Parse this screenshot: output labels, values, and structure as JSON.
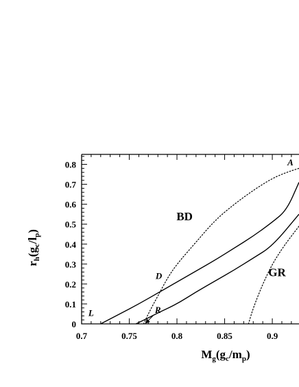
{
  "chart_data": {
    "type": "line",
    "title": "",
    "xlabel": {
      "main": "M",
      "sub1": "g",
      "open": "(g",
      "sub2": "c",
      "mid": "/m",
      "sub3": "p",
      "close": ")"
    },
    "ylabel": {
      "main": "r",
      "sub1": "h",
      "open": "(g",
      "sub2": "c",
      "mid": "/l",
      "sub3": "p",
      "close": ")"
    },
    "xlim": [
      0.7,
      0.928
    ],
    "ylim": [
      0,
      0.85
    ],
    "xticks": [
      "0.7",
      "0.75",
      "0.8",
      "0.85",
      "0.9"
    ],
    "yticks": [
      "0",
      "0.1",
      "0.2",
      "0.3",
      "0.4",
      "0.5",
      "0.6",
      "0.7",
      "0.8"
    ],
    "grid": false,
    "series": [
      {
        "style": "solid",
        "points": [
          [
            0.72,
            0.0
          ],
          [
            0.74,
            0.05
          ],
          [
            0.76,
            0.1
          ],
          [
            0.78,
            0.155
          ],
          [
            0.8,
            0.21
          ],
          [
            0.82,
            0.265
          ],
          [
            0.84,
            0.32
          ],
          [
            0.86,
            0.38
          ],
          [
            0.88,
            0.44
          ],
          [
            0.9,
            0.51
          ],
          [
            0.915,
            0.57
          ],
          [
            0.928,
            0.71
          ]
        ]
      },
      {
        "style": "solid",
        "points": [
          [
            0.757,
            0.0
          ],
          [
            0.77,
            0.03
          ],
          [
            0.78,
            0.055
          ],
          [
            0.8,
            0.1
          ],
          [
            0.82,
            0.16
          ],
          [
            0.84,
            0.215
          ],
          [
            0.86,
            0.27
          ],
          [
            0.88,
            0.33
          ],
          [
            0.9,
            0.39
          ],
          [
            0.928,
            0.55
          ]
        ]
      },
      {
        "style": "dotted",
        "points": [
          [
            0.765,
            0.0
          ],
          [
            0.772,
            0.07
          ],
          [
            0.78,
            0.14
          ],
          [
            0.79,
            0.23
          ],
          [
            0.8,
            0.3
          ],
          [
            0.82,
            0.41
          ],
          [
            0.84,
            0.52
          ],
          [
            0.86,
            0.6
          ],
          [
            0.88,
            0.67
          ],
          [
            0.9,
            0.73
          ],
          [
            0.915,
            0.76
          ],
          [
            0.928,
            0.78
          ]
        ]
      },
      {
        "style": "dotted",
        "points": [
          [
            0.875,
            0.0
          ],
          [
            0.88,
            0.08
          ],
          [
            0.89,
            0.2
          ],
          [
            0.9,
            0.3
          ],
          [
            0.912,
            0.39
          ],
          [
            0.928,
            0.49
          ]
        ]
      }
    ],
    "annotations": [
      {
        "text": "L",
        "x": 0.71,
        "y": 0.04,
        "kind": "point"
      },
      {
        "text": "R",
        "x": 0.78,
        "y": 0.055,
        "kind": "point",
        "arrow_to": [
          0.767,
          0.003
        ]
      },
      {
        "text": "D",
        "x": 0.781,
        "y": 0.225,
        "kind": "point"
      },
      {
        "text": "A",
        "x": 0.919,
        "y": 0.795,
        "kind": "point"
      },
      {
        "text": "BD",
        "x": 0.808,
        "y": 0.52,
        "kind": "region"
      },
      {
        "text": "GR",
        "x": 0.905,
        "y": 0.24,
        "kind": "region"
      }
    ]
  }
}
